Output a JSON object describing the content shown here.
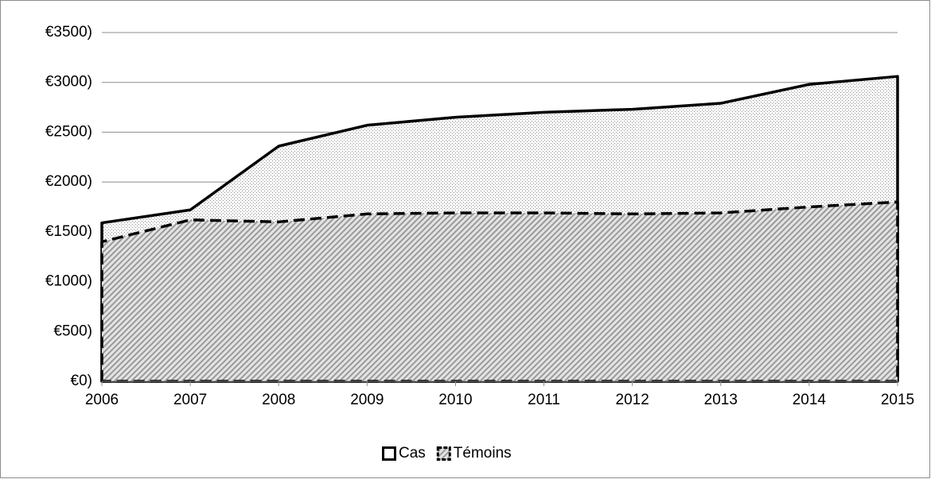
{
  "chart_data": {
    "type": "area",
    "categories": [
      "2006",
      "2007",
      "2008",
      "2009",
      "2010",
      "2011",
      "2012",
      "2013",
      "2014",
      "2015"
    ],
    "series": [
      {
        "name": "Cas",
        "color": "#000000",
        "values": [
          1590,
          1720,
          2360,
          2570,
          2650,
          2700,
          2730,
          2790,
          2980,
          3060
        ]
      },
      {
        "name": "Témoins",
        "color": "#000000",
        "values": [
          1400,
          1620,
          1600,
          1680,
          1690,
          1690,
          1680,
          1690,
          1750,
          1800
        ]
      }
    ],
    "ylim": [
      0,
      3500
    ],
    "yticks": [
      {
        "value": 0,
        "label": "€0)"
      },
      {
        "value": 500,
        "label": "€500)"
      },
      {
        "value": 1000,
        "label": "€1000)"
      },
      {
        "value": 1500,
        "label": "€1500)"
      },
      {
        "value": 2000,
        "label": "€2000)"
      },
      {
        "value": 2500,
        "label": "€2500)"
      },
      {
        "value": 3000,
        "label": "€3000)"
      },
      {
        "value": 3500,
        "label": "€3500)"
      }
    ],
    "grid": true,
    "legend": "bottom"
  }
}
